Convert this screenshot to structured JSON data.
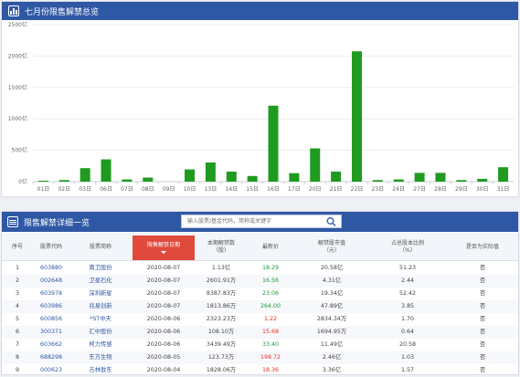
{
  "chart_panel": {
    "title": "七月份限售解禁总览"
  },
  "chart_data": {
    "type": "bar",
    "title": "",
    "xlabel": "",
    "ylabel": "",
    "ylim": [
      0,
      2500
    ],
    "yticks": [
      "0亿",
      "500亿",
      "1000亿",
      "1500亿",
      "2000亿",
      "2500亿"
    ],
    "grid": true,
    "bar_color": "#1f9b1f",
    "categories": [
      "01日",
      "02日",
      "03日",
      "06日",
      "07日",
      "08日",
      "09日",
      "10日",
      "13日",
      "14日",
      "15日",
      "16日",
      "17日",
      "20日",
      "21日",
      "22日",
      "23日",
      "24日",
      "27日",
      "28日",
      "29日",
      "30日",
      "31日"
    ],
    "values": [
      15,
      25,
      215,
      355,
      35,
      65,
      0,
      195,
      305,
      160,
      90,
      1210,
      135,
      530,
      160,
      2075,
      25,
      35,
      140,
      140,
      25,
      45,
      230
    ]
  },
  "table_panel": {
    "title": "限售解禁详细一览",
    "search_placeholder": "输入股票/基金代码，简称或关键字",
    "columns": [
      {
        "label": "序号"
      },
      {
        "label": "股票代码"
      },
      {
        "label": "股票简称"
      },
      {
        "label": "限售解禁日期",
        "sorted": true
      },
      {
        "label": "本期解禁数\n（股）"
      },
      {
        "label": "最新价"
      },
      {
        "label": "解禁股市值\n（元）"
      },
      {
        "label": "占总股本比例\n（%）"
      },
      {
        "label": "是否为实际值"
      }
    ],
    "rows": [
      {
        "no": "1",
        "code": "603880",
        "name": "南卫股份",
        "date": "2020-08-07",
        "shares": "1.13亿",
        "price": "18.29",
        "price_color": "green",
        "value": "20.58亿",
        "ratio": "51.23",
        "actual": "否"
      },
      {
        "no": "2",
        "code": "002648",
        "name": "卫星石化",
        "date": "2020-08-07",
        "shares": "2601.91万",
        "price": "16.56",
        "price_color": "green",
        "value": "4.31亿",
        "ratio": "2.44",
        "actual": "否"
      },
      {
        "no": "3",
        "code": "603978",
        "name": "深圳新星",
        "date": "2020-08-07",
        "shares": "8387.83万",
        "price": "23.06",
        "price_color": "green",
        "value": "19.34亿",
        "ratio": "52.42",
        "actual": "否"
      },
      {
        "no": "4",
        "code": "603986",
        "name": "兆易创新",
        "date": "2020-08-07",
        "shares": "1813.86万",
        "price": "264.00",
        "price_color": "green",
        "value": "47.89亿",
        "ratio": "3.85",
        "actual": "否"
      },
      {
        "no": "5",
        "code": "600856",
        "name": "*ST中天",
        "date": "2020-08-06",
        "shares": "2323.23万",
        "price": "1.22",
        "price_color": "red",
        "value": "2834.34万",
        "ratio": "1.70",
        "actual": "否"
      },
      {
        "no": "6",
        "code": "300371",
        "name": "汇中股份",
        "date": "2020-08-06",
        "shares": "108.10万",
        "price": "15.68",
        "price_color": "red",
        "value": "1694.95万",
        "ratio": "0.64",
        "actual": "否"
      },
      {
        "no": "7",
        "code": "603662",
        "name": "柯力传感",
        "date": "2020-08-06",
        "shares": "3439.49万",
        "price": "33.40",
        "price_color": "green",
        "value": "11.49亿",
        "ratio": "20.58",
        "actual": "否"
      },
      {
        "no": "8",
        "code": "688298",
        "name": "东方生物",
        "date": "2020-08-05",
        "shares": "123.73万",
        "price": "198.72",
        "price_color": "red",
        "value": "2.46亿",
        "ratio": "1.03",
        "actual": "否"
      },
      {
        "no": "9",
        "code": "000623",
        "name": "吉林敖东",
        "date": "2020-08-04",
        "shares": "1828.06万",
        "price": "18.36",
        "price_color": "red",
        "value": "3.36亿",
        "ratio": "1.57",
        "actual": "否"
      }
    ]
  }
}
